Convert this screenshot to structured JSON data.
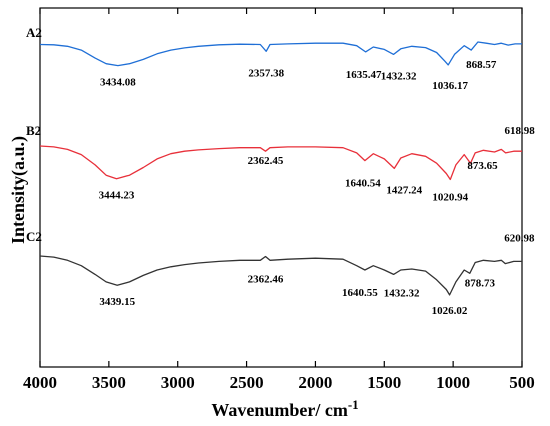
{
  "chart_data": {
    "type": "line",
    "xlabel": "Wavenumber/ cm",
    "xlabel_sup": "-1",
    "ylabel": "Intensity(a.u.)",
    "xlim": [
      4000,
      500
    ],
    "x_reversed": true,
    "xticks": [
      4000,
      3500,
      3000,
      2500,
      2000,
      1500,
      1000,
      500
    ],
    "y_ticks_shown": false,
    "grid": false,
    "series": [
      {
        "name": "A2",
        "color": "#1f6fd6",
        "points": [
          [
            4000,
            0.4
          ],
          [
            3900,
            0.45
          ],
          [
            3800,
            0.7
          ],
          [
            3700,
            1.3
          ],
          [
            3600,
            2.6
          ],
          [
            3520,
            3.5
          ],
          [
            3434.08,
            3.8
          ],
          [
            3350,
            3.5
          ],
          [
            3250,
            2.8
          ],
          [
            3150,
            1.9
          ],
          [
            3050,
            1.3
          ],
          [
            2950,
            0.95
          ],
          [
            2850,
            0.7
          ],
          [
            2700,
            0.45
          ],
          [
            2550,
            0.35
          ],
          [
            2400,
            0.4
          ],
          [
            2357.38,
            1.5
          ],
          [
            2330,
            0.4
          ],
          [
            2200,
            0.3
          ],
          [
            2000,
            0.2
          ],
          [
            1800,
            0.2
          ],
          [
            1700,
            0.6
          ],
          [
            1635.47,
            1.6
          ],
          [
            1580,
            0.8
          ],
          [
            1500,
            1.2
          ],
          [
            1432.32,
            2.0
          ],
          [
            1380,
            1.1
          ],
          [
            1300,
            0.7
          ],
          [
            1200,
            0.9
          ],
          [
            1120,
            1.7
          ],
          [
            1060,
            3.1
          ],
          [
            1036.17,
            3.7
          ],
          [
            990,
            2.0
          ],
          [
            920,
            0.6
          ],
          [
            868.57,
            1.3
          ],
          [
            820,
            0.0
          ],
          [
            760,
            0.2
          ],
          [
            700,
            0.4
          ],
          [
            650,
            0.2
          ],
          [
            600,
            0.5
          ],
          [
            550,
            0.3
          ],
          [
            500,
            0.3
          ]
        ],
        "peak_labels": [
          "3434.08",
          "2357.38",
          "1635.47",
          "1432.32",
          "1036.17",
          "868.57"
        ]
      },
      {
        "name": "B2",
        "color": "#e8303a",
        "points": [
          [
            4000,
            0.0
          ],
          [
            3900,
            0.1
          ],
          [
            3800,
            0.4
          ],
          [
            3700,
            1.0
          ],
          [
            3600,
            2.2
          ],
          [
            3520,
            3.4
          ],
          [
            3444.23,
            3.8
          ],
          [
            3350,
            3.4
          ],
          [
            3250,
            2.5
          ],
          [
            3150,
            1.5
          ],
          [
            3050,
            0.9
          ],
          [
            2950,
            0.6
          ],
          [
            2850,
            0.45
          ],
          [
            2700,
            0.3
          ],
          [
            2550,
            0.2
          ],
          [
            2400,
            0.2
          ],
          [
            2362.45,
            0.6
          ],
          [
            2330,
            0.2
          ],
          [
            2200,
            0.1
          ],
          [
            2000,
            0.1
          ],
          [
            1800,
            0.2
          ],
          [
            1700,
            0.8
          ],
          [
            1640.54,
            1.7
          ],
          [
            1580,
            0.9
          ],
          [
            1500,
            1.5
          ],
          [
            1427.24,
            2.6
          ],
          [
            1380,
            1.4
          ],
          [
            1300,
            0.9
          ],
          [
            1200,
            1.2
          ],
          [
            1120,
            2.0
          ],
          [
            1050,
            3.2
          ],
          [
            1020.94,
            3.9
          ],
          [
            980,
            2.2
          ],
          [
            920,
            1.0
          ],
          [
            873.65,
            2.0
          ],
          [
            840,
            0.8
          ],
          [
            780,
            0.5
          ],
          [
            700,
            0.7
          ],
          [
            650,
            0.4
          ],
          [
            618.98,
            0.8
          ],
          [
            560,
            0.6
          ],
          [
            500,
            0.6
          ]
        ],
        "peak_labels": [
          "3444.23",
          "2362.45",
          "1640.54",
          "1427.24",
          "1020.94",
          "873.65",
          "618.98"
        ]
      },
      {
        "name": "C2",
        "color": "#333333",
        "points": [
          [
            4000,
            0.0
          ],
          [
            3900,
            0.1
          ],
          [
            3800,
            0.4
          ],
          [
            3700,
            0.9
          ],
          [
            3600,
            1.7
          ],
          [
            3520,
            2.4
          ],
          [
            3439.15,
            2.7
          ],
          [
            3350,
            2.4
          ],
          [
            3250,
            1.8
          ],
          [
            3150,
            1.3
          ],
          [
            3050,
            1.0
          ],
          [
            2950,
            0.8
          ],
          [
            2850,
            0.65
          ],
          [
            2700,
            0.5
          ],
          [
            2550,
            0.4
          ],
          [
            2400,
            0.4
          ],
          [
            2362.46,
            0.05
          ],
          [
            2330,
            0.4
          ],
          [
            2200,
            0.3
          ],
          [
            2000,
            0.2
          ],
          [
            1800,
            0.3
          ],
          [
            1700,
            0.9
          ],
          [
            1640.55,
            1.3
          ],
          [
            1580,
            0.9
          ],
          [
            1500,
            1.3
          ],
          [
            1432.32,
            1.7
          ],
          [
            1380,
            1.3
          ],
          [
            1300,
            1.2
          ],
          [
            1200,
            1.4
          ],
          [
            1120,
            2.2
          ],
          [
            1050,
            3.1
          ],
          [
            1026.02,
            3.6
          ],
          [
            980,
            2.4
          ],
          [
            920,
            1.3
          ],
          [
            878.73,
            1.6
          ],
          [
            840,
            0.6
          ],
          [
            780,
            0.4
          ],
          [
            700,
            0.5
          ],
          [
            650,
            0.4
          ],
          [
            620.98,
            0.7
          ],
          [
            560,
            0.5
          ],
          [
            500,
            0.5
          ]
        ],
        "peak_labels": [
          "3439.15",
          "2362.46",
          "1640.55",
          "1432.32",
          "1026.02",
          "878.73",
          "620.98"
        ]
      }
    ]
  }
}
